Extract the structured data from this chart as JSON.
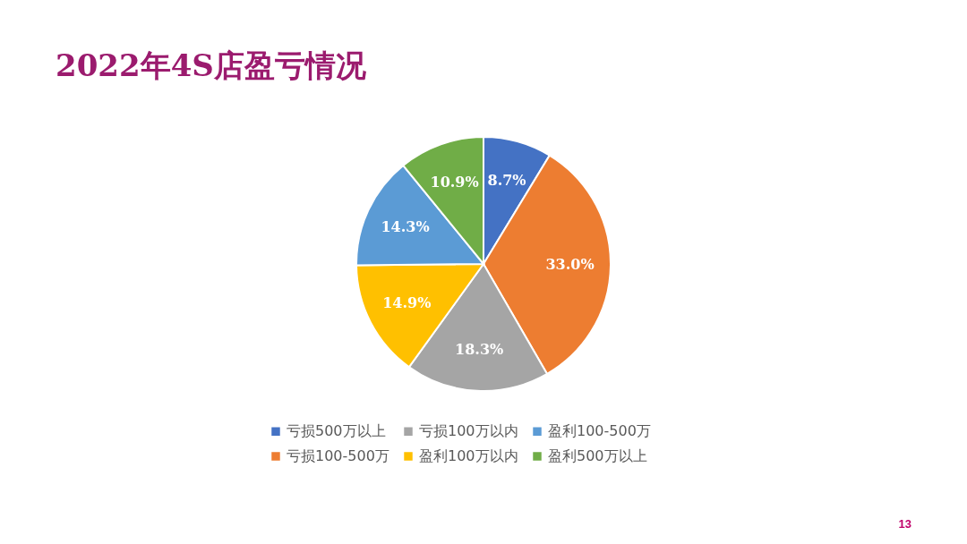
{
  "chart_data": {
    "type": "pie",
    "title": "2022年4S店盈亏情况",
    "categories": [
      "亏损500万以上",
      "亏损100-500万",
      "亏损100万以内",
      "盈利100万以内",
      "盈利100-500万",
      "盈利500万以上"
    ],
    "values": [
      8.7,
      33.0,
      18.3,
      14.9,
      14.3,
      10.9
    ],
    "value_labels": [
      "8.7%",
      "33.0%",
      "18.3%",
      "14.9%",
      "14.3%",
      "10.9%"
    ],
    "colors": [
      "#4472c4",
      "#ed7d31",
      "#a5a5a5",
      "#ffc000",
      "#5b9bd5",
      "#70ad47"
    ],
    "legend": "bottom",
    "annotations": [
      "13"
    ]
  }
}
